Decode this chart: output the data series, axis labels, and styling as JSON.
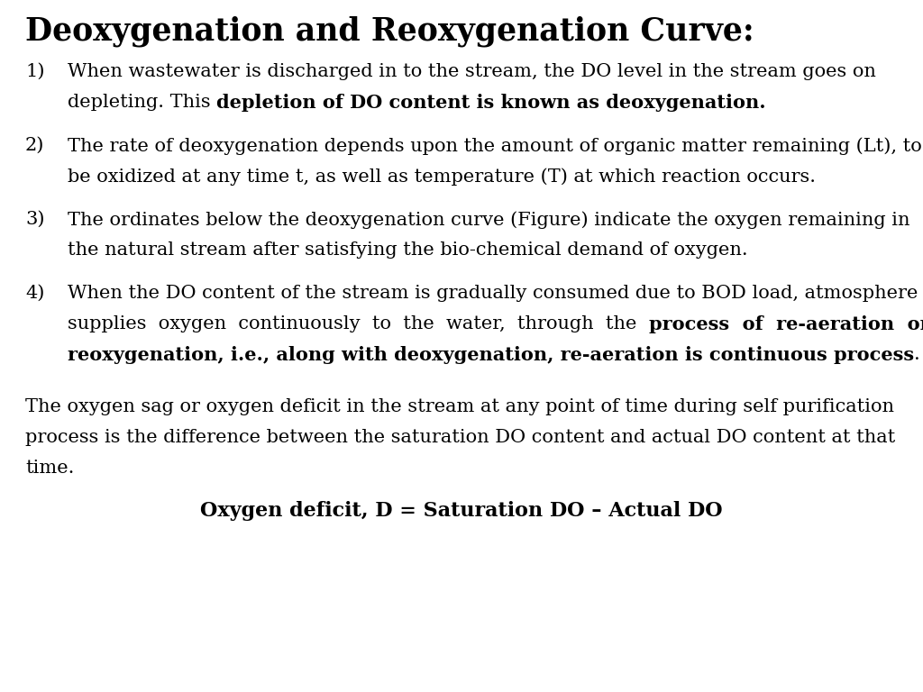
{
  "title": "Deoxygenation and Reoxygenation Curve:",
  "background_color": "#ffffff",
  "title_fontsize": 25,
  "body_fontsize": 15,
  "items": [
    {
      "number": "1)",
      "lines": [
        [
          {
            "text": "When wastewater is discharged in to the stream, the DO level in the stream goes on",
            "bold": false
          }
        ],
        [
          {
            "text": "depleting. This ",
            "bold": false
          },
          {
            "text": "depletion of DO content is known as deoxygenation.",
            "bold": true
          }
        ]
      ]
    },
    {
      "number": "2)",
      "lines": [
        [
          {
            "text": "The rate of deoxygenation depends upon the amount of organic matter remaining (Lt), to",
            "bold": false
          }
        ],
        [
          {
            "text": "be oxidized at any time t, as well as temperature (T) at which reaction occurs.",
            "bold": false
          }
        ]
      ]
    },
    {
      "number": "3)",
      "lines": [
        [
          {
            "text": "The ordinates below the deoxygenation curve (Figure) indicate the oxygen remaining in",
            "bold": false
          }
        ],
        [
          {
            "text": "the natural stream after satisfying the bio-chemical demand of oxygen.",
            "bold": false
          }
        ]
      ]
    },
    {
      "number": "4)",
      "lines": [
        [
          {
            "text": "When the DO content of the stream is gradually consumed due to BOD load, atmosphere",
            "bold": false
          }
        ],
        [
          {
            "text": "supplies  oxygen  continuously  to  the  water,  through  the  ",
            "bold": false
          },
          {
            "text": "process  of  re-aeration  or",
            "bold": true
          }
        ],
        [
          {
            "text": "reoxygenation, i.e., along with deoxygenation, re-aeration is continuous process",
            "bold": true
          },
          {
            "text": ".",
            "bold": false
          }
        ]
      ]
    }
  ],
  "paragraph_lines": [
    "The oxygen sag or oxygen deficit in the stream at any point of time during self purification",
    "process is the difference between the saturation DO content and actual DO content at that",
    "time."
  ],
  "formula": "Oxygen deficit, D = Saturation DO – Actual DO"
}
